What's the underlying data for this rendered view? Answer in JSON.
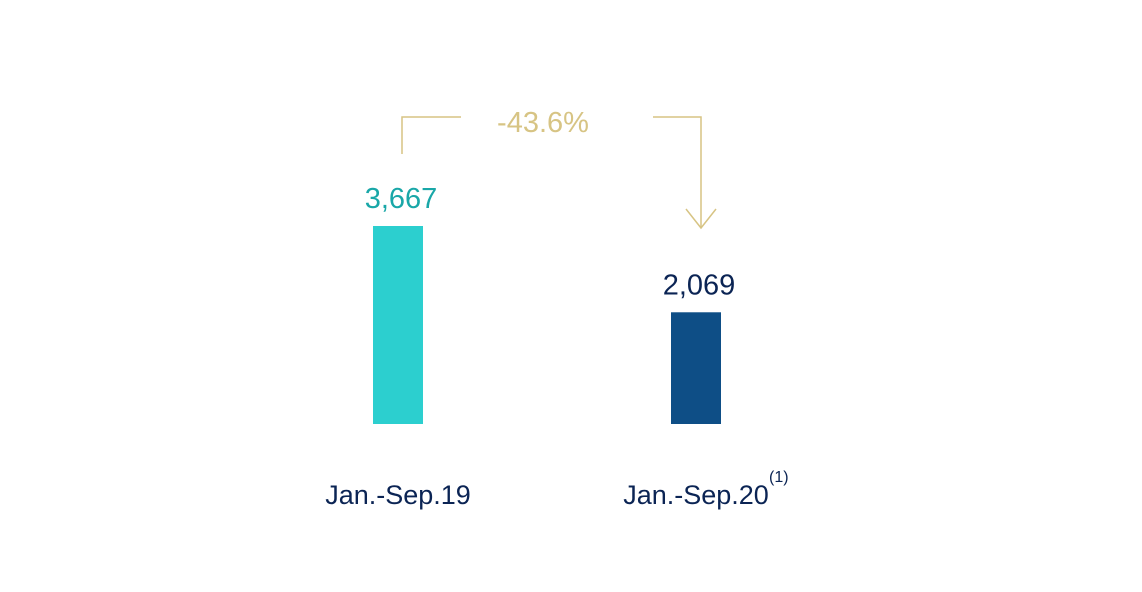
{
  "chart_data": {
    "type": "bar",
    "categories": [
      "Jan.-Sep.19",
      "Jan.-Sep.20"
    ],
    "values": [
      3667,
      2069
    ],
    "value_labels": [
      "3,667",
      "2,069"
    ],
    "category_footnotes": [
      "",
      "(1)"
    ],
    "bar_colors": [
      "#2ccfcf",
      "#0e4e86"
    ],
    "value_label_colors": [
      "#19a7a8",
      "#0b2454"
    ],
    "change": {
      "label": "-43.6%",
      "color": "#d7c484",
      "from_category": 0,
      "to_category": 1
    },
    "title": "",
    "xlabel": "",
    "ylabel": "",
    "ylim": [
      0,
      3667
    ],
    "grid": false
  }
}
